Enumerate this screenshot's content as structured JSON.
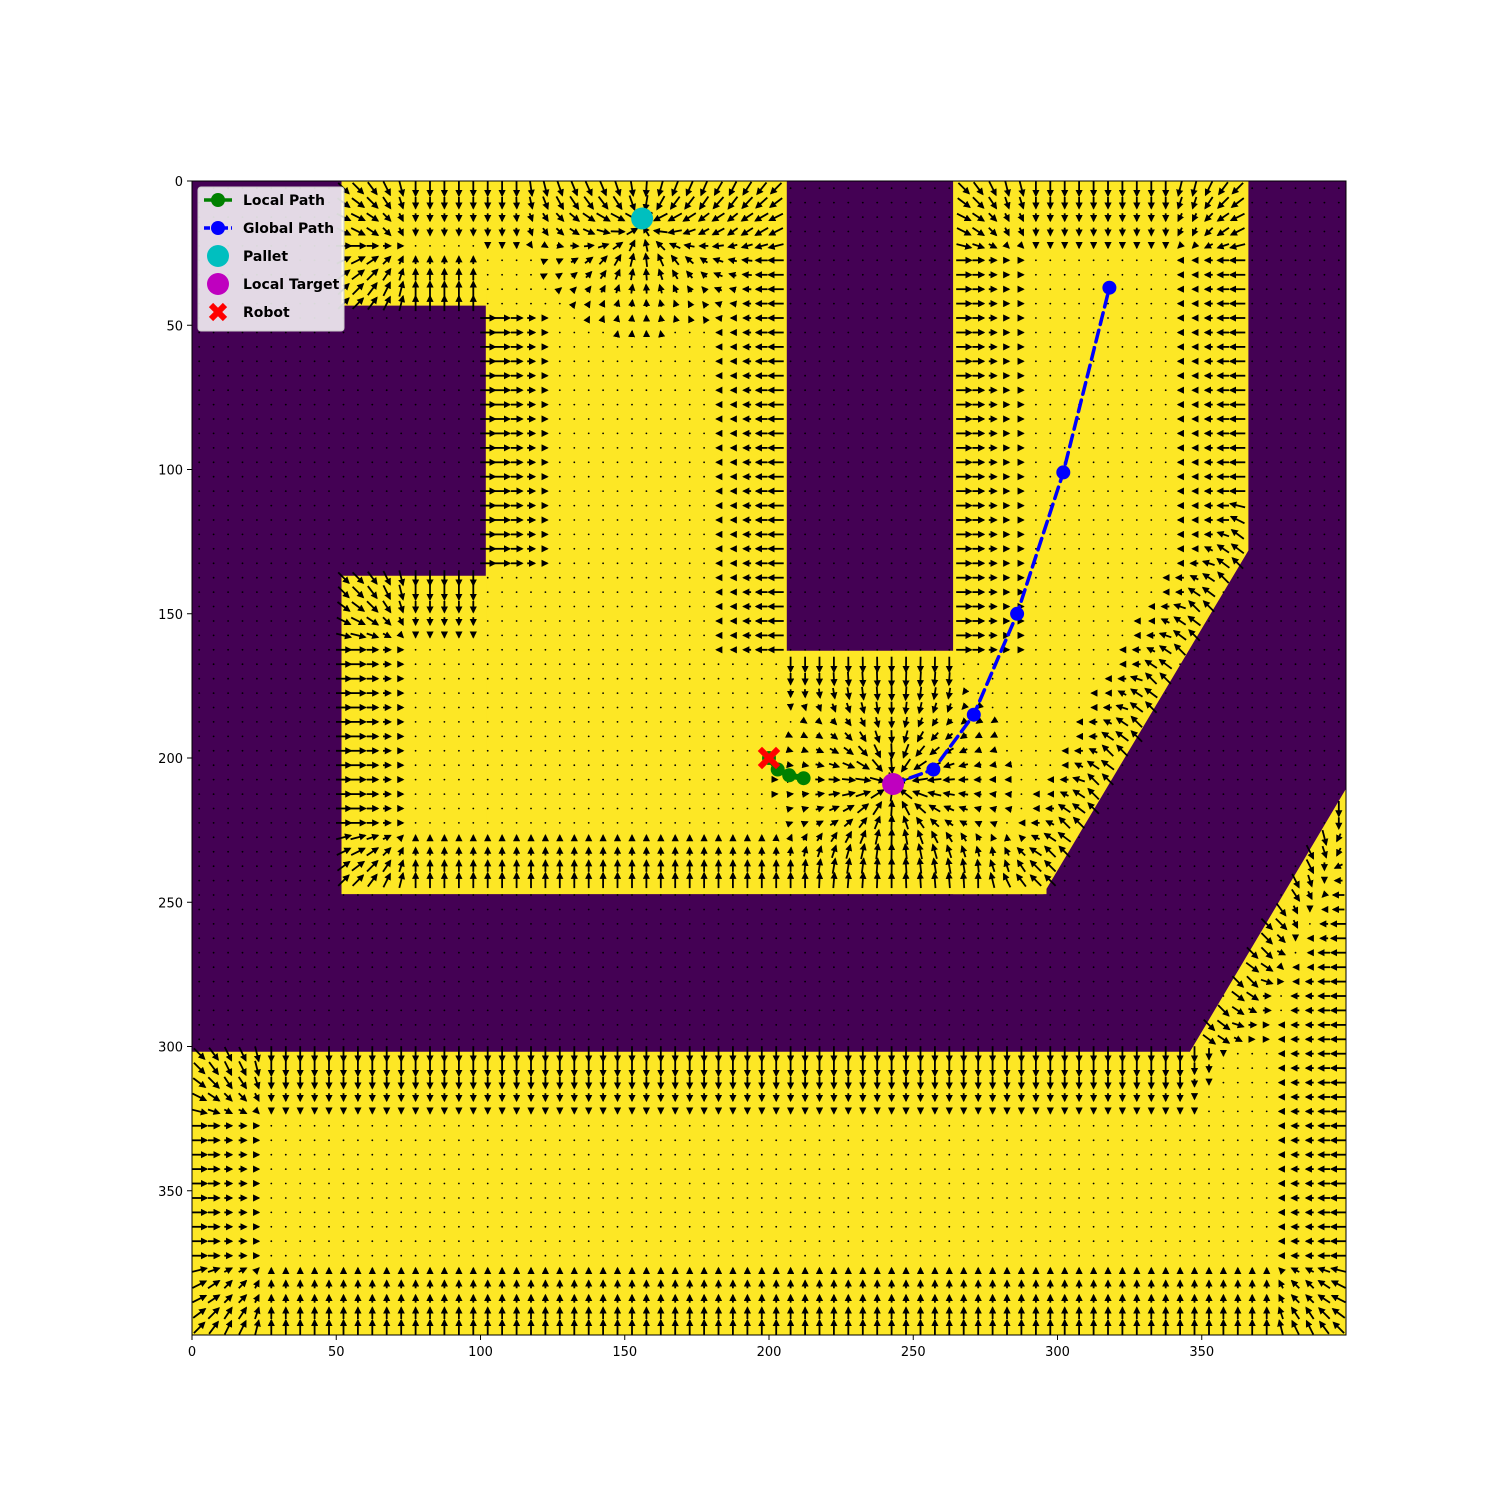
{
  "chart_data": {
    "type": "heatmap",
    "title": "",
    "xlabel": "",
    "ylabel": "",
    "xlim": [
      0,
      400
    ],
    "ylim": [
      400,
      0
    ],
    "x_ticks": [
      0,
      50,
      100,
      150,
      200,
      250,
      300,
      350
    ],
    "y_ticks": [
      0,
      50,
      100,
      150,
      200,
      250,
      300,
      350
    ],
    "grid": false,
    "legend_position": "upper-left",
    "colors": {
      "obstacle": "#440154",
      "free": "#fde725",
      "arrows": "#000000",
      "local_path": "#008000",
      "global_path": "#0000ff",
      "pallet": "#00bfbf",
      "local_target": "#bf00bf",
      "robot": "#ff0000"
    },
    "free_space_polygons": [
      [
        [
          52,
          0
        ],
        [
          102,
          0
        ],
        [
          102,
          43
        ],
        [
          52,
          43
        ]
      ],
      [
        [
          102,
          0
        ],
        [
          206,
          0
        ],
        [
          206,
          163
        ],
        [
          102,
          163
        ]
      ],
      [
        [
          52,
          137
        ],
        [
          102,
          137
        ],
        [
          102,
          247
        ],
        [
          52,
          247
        ]
      ],
      [
        [
          102,
          163
        ],
        [
          296,
          163
        ],
        [
          296,
          247
        ],
        [
          102,
          247
        ]
      ],
      [
        [
          264,
          0
        ],
        [
          366,
          0
        ],
        [
          366,
          128
        ],
        [
          295,
          247
        ],
        [
          264,
          247
        ]
      ],
      [
        [
          0,
          302
        ],
        [
          346,
          302
        ],
        [
          400,
          211
        ],
        [
          400,
          400
        ],
        [
          0,
          400
        ]
      ]
    ],
    "quiver_attractor": [
      243,
      209
    ],
    "pallet_attractor": [
      156,
      13
    ],
    "series": [
      {
        "name": "Local Path",
        "kind": "line",
        "x": [
          200,
          203,
          207,
          212
        ],
        "y": [
          200,
          204,
          206,
          207
        ]
      },
      {
        "name": "Global Path",
        "kind": "dashed-line",
        "x": [
          243,
          257,
          271,
          286,
          302,
          318
        ],
        "y": [
          209,
          204,
          185,
          150,
          101,
          37
        ]
      },
      {
        "name": "Pallet",
        "kind": "point",
        "x": [
          156
        ],
        "y": [
          13
        ]
      },
      {
        "name": "Local Target",
        "kind": "point",
        "x": [
          243
        ],
        "y": [
          209
        ]
      },
      {
        "name": "Robot",
        "kind": "x-marker",
        "x": [
          200
        ],
        "y": [
          200
        ]
      }
    ]
  }
}
